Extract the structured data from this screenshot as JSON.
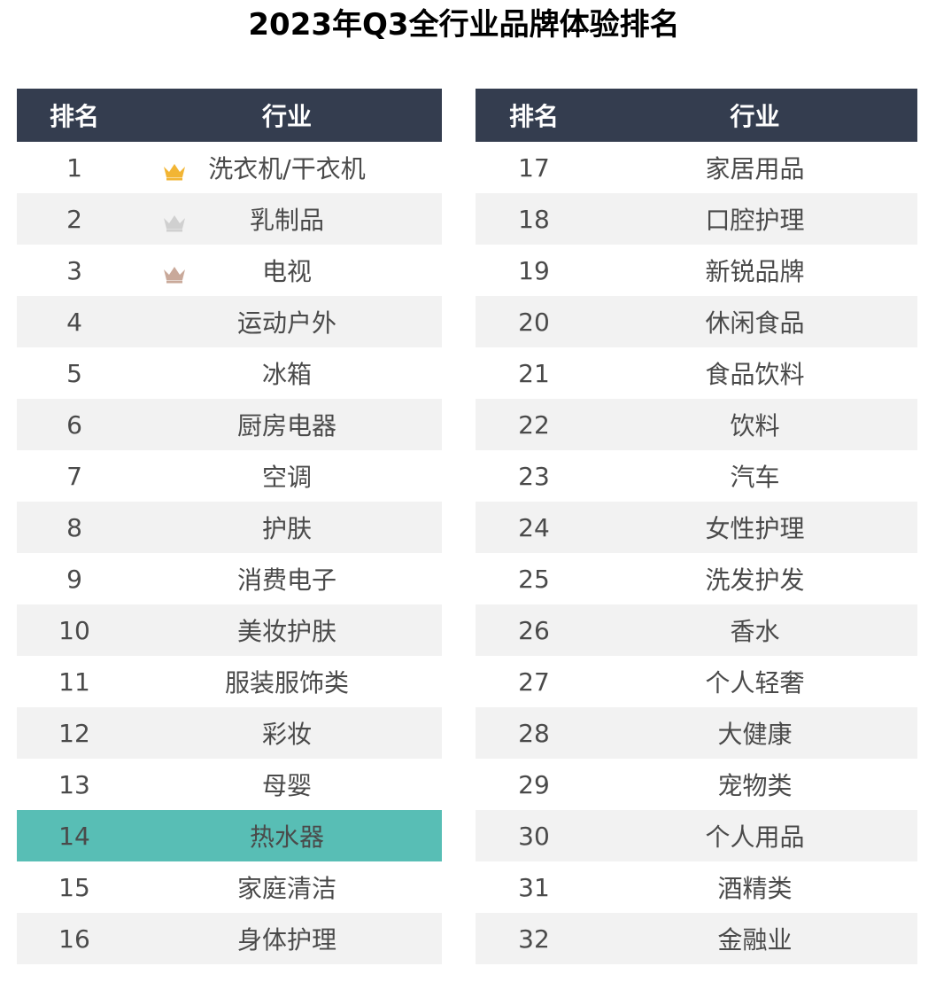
{
  "title": "2023年Q3全行业品牌体验排名",
  "header": {
    "rank_label": "排名",
    "industry_label": "行业"
  },
  "colors": {
    "header_bg": "#343D4F",
    "stripe": "#F2F2F2",
    "highlight": "#58BEB5",
    "gold": "#F2B534",
    "silver": "#D0D0D0",
    "bronze": "#C9A99A"
  },
  "chart_data": {
    "type": "table",
    "title": "2023年Q3全行业品牌体验排名",
    "columns": [
      "排名",
      "行业"
    ],
    "highlighted_rank": 14,
    "rows": [
      {
        "rank": "1",
        "industry": "洗衣机/干衣机",
        "medal": "gold-crown-icon"
      },
      {
        "rank": "2",
        "industry": "乳制品",
        "medal": "silver-crown-icon"
      },
      {
        "rank": "3",
        "industry": "电视",
        "medal": "bronze-crown-icon"
      },
      {
        "rank": "4",
        "industry": "运动户外"
      },
      {
        "rank": "5",
        "industry": "冰箱"
      },
      {
        "rank": "6",
        "industry": "厨房电器"
      },
      {
        "rank": "7",
        "industry": "空调"
      },
      {
        "rank": "8",
        "industry": "护肤"
      },
      {
        "rank": "9",
        "industry": "消费电子"
      },
      {
        "rank": "10",
        "industry": "美妆护肤"
      },
      {
        "rank": "11",
        "industry": "服装服饰类"
      },
      {
        "rank": "12",
        "industry": "彩妆"
      },
      {
        "rank": "13",
        "industry": "母婴"
      },
      {
        "rank": "14",
        "industry": "热水器"
      },
      {
        "rank": "15",
        "industry": "家庭清洁"
      },
      {
        "rank": "16",
        "industry": "身体护理"
      },
      {
        "rank": "17",
        "industry": "家居用品"
      },
      {
        "rank": "18",
        "industry": "口腔护理"
      },
      {
        "rank": "19",
        "industry": "新锐品牌"
      },
      {
        "rank": "20",
        "industry": "休闲食品"
      },
      {
        "rank": "21",
        "industry": "食品饮料"
      },
      {
        "rank": "22",
        "industry": "饮料"
      },
      {
        "rank": "23",
        "industry": "汽车"
      },
      {
        "rank": "24",
        "industry": "女性护理"
      },
      {
        "rank": "25",
        "industry": "洗发护发"
      },
      {
        "rank": "26",
        "industry": "香水"
      },
      {
        "rank": "27",
        "industry": "个人轻奢"
      },
      {
        "rank": "28",
        "industry": "大健康"
      },
      {
        "rank": "29",
        "industry": "宠物类"
      },
      {
        "rank": "30",
        "industry": "个人用品"
      },
      {
        "rank": "31",
        "industry": "酒精类"
      },
      {
        "rank": "32",
        "industry": "金融业"
      }
    ]
  }
}
